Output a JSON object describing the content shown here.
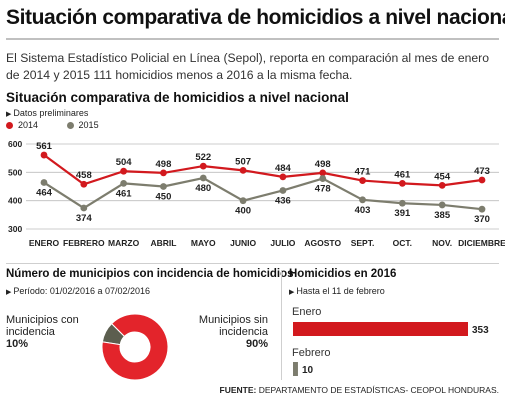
{
  "header": {
    "title": "Situación comparativa de homicidios a nivel nacional",
    "intro": "El Sistema Estadístico Policial en Línea (Sepol), reporta en comparación al mes de enero de 2014 y 2015 111 homicidios menos a 2016 a la misma fecha."
  },
  "line_section": {
    "title": "Situación comparativa de homicidios a nivel nacional",
    "subtitle": "Datos preliminares"
  },
  "pie_section": {
    "title": "Número de municipios con incidencia de homicidios",
    "period": "Período: 01/02/2016 a 07/02/2016",
    "label_with": "Municipios con incidencia",
    "label_without": "Municipios sin incidencia",
    "pct_with": "10%",
    "pct_without": "90%"
  },
  "bar_section": {
    "title": "Homicidios en 2016",
    "subtitle": "Hasta el 11 de febrero"
  },
  "footer": {
    "source_label": "FUENTE:",
    "source_text": "DEPARTAMENTO DE ESTADÍSTICAS- CEOPOL HONDURAS."
  },
  "colors": {
    "s2014": "#d2191e",
    "s2015": "#7d7d6e",
    "grid": "#bdbdbd",
    "pie_main": "#e3242b",
    "pie_small": "#5c5e4f"
  },
  "icons": {
    "bullet": "triangle-right-icon"
  },
  "chart_data": [
    {
      "type": "line",
      "title": "Situación comparativa de homicidios a nivel nacional",
      "subtitle": "Datos preliminares",
      "categories": [
        "ENERO",
        "FEBRERO",
        "MARZO",
        "ABRIL",
        "MAYO",
        "JUNIO",
        "JULIO",
        "AGOSTO",
        "SEPT.",
        "OCT.",
        "NOV.",
        "DICIEMBRE"
      ],
      "series": [
        {
          "name": "2014",
          "values": [
            561,
            458,
            504,
            498,
            522,
            507,
            484,
            498,
            471,
            461,
            454,
            473
          ]
        },
        {
          "name": "2015",
          "values": [
            464,
            374,
            461,
            450,
            480,
            400,
            436,
            478,
            403,
            391,
            385,
            370
          ]
        }
      ],
      "yticks": [
        300,
        400,
        500,
        600
      ],
      "ylim": [
        300,
        600
      ],
      "grid": true,
      "legend": "top-left"
    },
    {
      "type": "pie",
      "title": "Número de municipios con incidencia de homicidios",
      "subtitle": "Período: 01/02/2016 a 07/02/2016",
      "slices": [
        {
          "label": "Municipios con incidencia",
          "value": 10
        },
        {
          "label": "Municipios sin incidencia",
          "value": 90
        }
      ],
      "donut": true
    },
    {
      "type": "bar",
      "orientation": "horizontal",
      "title": "Homicidios en 2016",
      "subtitle": "Hasta el 11 de febrero",
      "categories": [
        "Enero",
        "Febrero"
      ],
      "values": [
        353,
        10
      ]
    }
  ]
}
